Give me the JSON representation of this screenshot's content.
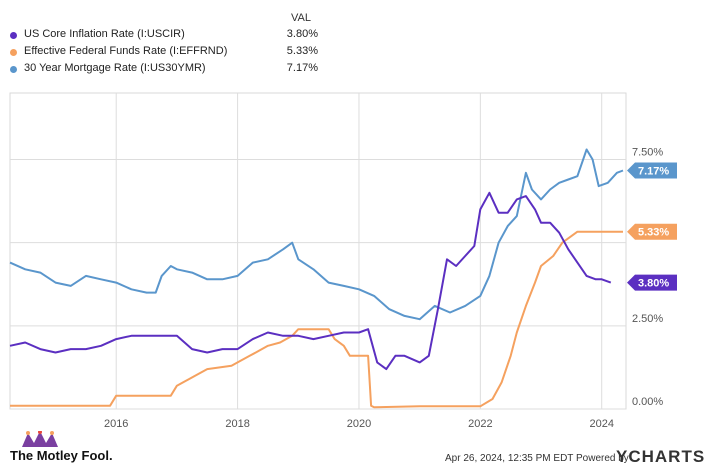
{
  "legend": {
    "header": "VAL",
    "items": [
      {
        "name": "US Core Inflation Rate (I:USCIR)",
        "value": "3.80%",
        "color": "#5b2fc1"
      },
      {
        "name": "Effective Federal Funds Rate (I:EFFRND)",
        "value": "5.33%",
        "color": "#f5a15f"
      },
      {
        "name": "30 Year Mortgage Rate (I:US30YMR)",
        "value": "7.17%",
        "color": "#5a96cc"
      }
    ]
  },
  "chart_data": {
    "type": "line",
    "title": "",
    "xlabel": "",
    "ylabel": "",
    "xlim": [
      2014.25,
      2024.4
    ],
    "ylim": [
      0,
      9.5
    ],
    "x_ticks": [
      {
        "value": 2016,
        "label": "2016"
      },
      {
        "value": 2018,
        "label": "2018"
      },
      {
        "value": 2020,
        "label": "2020"
      },
      {
        "value": 2022,
        "label": "2022"
      },
      {
        "value": 2024,
        "label": "2024"
      }
    ],
    "y_ticks": [
      {
        "value": 0,
        "label": "0.00%"
      },
      {
        "value": 2.5,
        "label": "2.50%"
      },
      {
        "value": 7.5,
        "label": "7.50%"
      }
    ],
    "gridlines_y": [
      0,
      2.5,
      5.0,
      7.5
    ],
    "series": [
      {
        "name": "US Core Inflation Rate (I:USCIR)",
        "color": "#5b2fc1",
        "end_label": "3.80%",
        "x": [
          2014.25,
          2014.5,
          2014.75,
          2015.0,
          2015.25,
          2015.5,
          2015.75,
          2016.0,
          2016.25,
          2016.5,
          2016.75,
          2017.0,
          2017.25,
          2017.5,
          2017.75,
          2018.0,
          2018.25,
          2018.5,
          2018.75,
          2019.0,
          2019.25,
          2019.5,
          2019.75,
          2020.0,
          2020.15,
          2020.3,
          2020.45,
          2020.6,
          2020.75,
          2021.0,
          2021.15,
          2021.3,
          2021.45,
          2021.6,
          2021.75,
          2021.9,
          2022.0,
          2022.15,
          2022.3,
          2022.45,
          2022.6,
          2022.75,
          2022.9,
          2023.0,
          2023.15,
          2023.3,
          2023.45,
          2023.6,
          2023.75,
          2023.9,
          2024.0,
          2024.15
        ],
        "y": [
          1.9,
          2.0,
          1.8,
          1.7,
          1.8,
          1.8,
          1.9,
          2.1,
          2.2,
          2.2,
          2.2,
          2.2,
          1.8,
          1.7,
          1.8,
          1.8,
          2.1,
          2.3,
          2.2,
          2.2,
          2.1,
          2.2,
          2.3,
          2.3,
          2.4,
          1.4,
          1.2,
          1.6,
          1.6,
          1.4,
          1.6,
          3.0,
          4.5,
          4.3,
          4.6,
          4.9,
          6.0,
          6.5,
          5.9,
          5.9,
          6.3,
          6.4,
          6.0,
          5.6,
          5.6,
          5.3,
          4.8,
          4.4,
          4.0,
          3.9,
          3.9,
          3.8
        ]
      },
      {
        "name": "Effective Federal Funds Rate (I:EFFRND)",
        "color": "#f5a15f",
        "end_label": "5.33%",
        "x": [
          2014.25,
          2015.9,
          2016.0,
          2016.9,
          2017.0,
          2017.2,
          2017.3,
          2017.5,
          2017.9,
          2018.0,
          2018.2,
          2018.3,
          2018.5,
          2018.7,
          2018.9,
          2019.0,
          2019.5,
          2019.6,
          2019.75,
          2019.85,
          2020.15,
          2020.2,
          2020.25,
          2021.0,
          2022.0,
          2022.2,
          2022.35,
          2022.5,
          2022.6,
          2022.75,
          2022.9,
          2023.0,
          2023.2,
          2023.35,
          2023.6,
          2024.35
        ],
        "y": [
          0.1,
          0.1,
          0.4,
          0.4,
          0.7,
          0.9,
          1.0,
          1.2,
          1.3,
          1.4,
          1.6,
          1.7,
          1.9,
          2.0,
          2.2,
          2.4,
          2.4,
          2.1,
          1.9,
          1.6,
          1.6,
          0.1,
          0.05,
          0.08,
          0.08,
          0.3,
          0.8,
          1.6,
          2.3,
          3.1,
          3.8,
          4.3,
          4.6,
          5.0,
          5.33,
          5.33
        ]
      },
      {
        "name": "30 Year Mortgage Rate (I:US30YMR)",
        "color": "#5a96cc",
        "end_label": "7.17%",
        "x": [
          2014.25,
          2014.5,
          2014.75,
          2015.0,
          2015.25,
          2015.5,
          2015.75,
          2016.0,
          2016.25,
          2016.5,
          2016.65,
          2016.75,
          2016.9,
          2017.0,
          2017.25,
          2017.5,
          2017.75,
          2018.0,
          2018.25,
          2018.5,
          2018.75,
          2018.9,
          2019.0,
          2019.25,
          2019.5,
          2019.75,
          2020.0,
          2020.25,
          2020.5,
          2020.75,
          2021.0,
          2021.25,
          2021.5,
          2021.75,
          2022.0,
          2022.15,
          2022.3,
          2022.45,
          2022.6,
          2022.75,
          2022.85,
          2023.0,
          2023.15,
          2023.3,
          2023.45,
          2023.6,
          2023.75,
          2023.85,
          2023.95,
          2024.1,
          2024.25,
          2024.35
        ],
        "y": [
          4.4,
          4.2,
          4.1,
          3.8,
          3.7,
          4.0,
          3.9,
          3.8,
          3.6,
          3.5,
          3.5,
          4.0,
          4.3,
          4.2,
          4.1,
          3.9,
          3.9,
          4.0,
          4.4,
          4.5,
          4.8,
          5.0,
          4.5,
          4.2,
          3.8,
          3.7,
          3.6,
          3.4,
          3.0,
          2.8,
          2.7,
          3.1,
          2.9,
          3.1,
          3.4,
          4.0,
          5.0,
          5.5,
          5.8,
          7.1,
          6.6,
          6.3,
          6.6,
          6.8,
          6.9,
          7.0,
          7.8,
          7.5,
          6.7,
          6.8,
          7.1,
          7.17
        ]
      }
    ]
  },
  "footer": {
    "brand": "The Motley Fool.",
    "timestamp": "Apr 26, 2024, 12:35 PM EDT Powered by",
    "ycharts": "YCHARTS"
  }
}
